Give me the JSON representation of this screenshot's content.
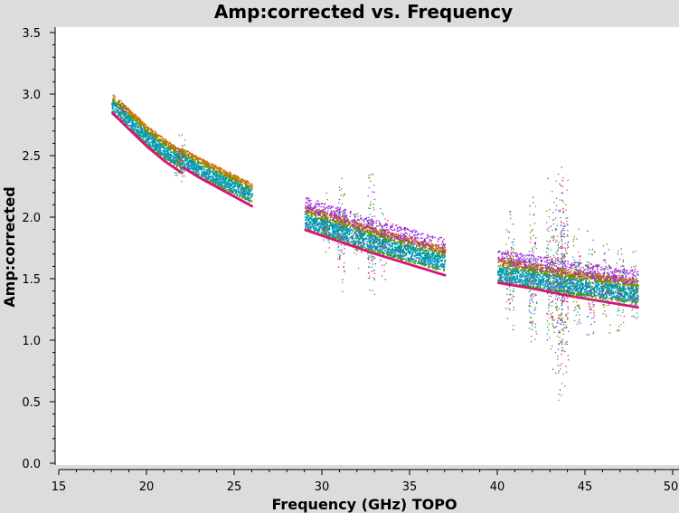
{
  "chart_data": {
    "type": "scatter",
    "title": "Amp:corrected vs. Frequency",
    "xlabel": "Frequency (GHz) TOPO",
    "ylabel": "Amp:corrected",
    "xlim": [
      15,
      50
    ],
    "ylim": [
      0.0,
      3.5
    ],
    "xticks": [
      "15",
      "20",
      "25",
      "30",
      "35",
      "40",
      "45",
      "50"
    ],
    "yticks": [
      "0.0",
      "0.5",
      "1.0",
      "1.5",
      "2.0",
      "2.5",
      "3.0",
      "3.5"
    ],
    "grid": false,
    "legend": "none",
    "band_colors": [
      "#0099aa",
      "#1a8fd0",
      "#cc6f00",
      "#2aa02a",
      "#9922dd",
      "#e0107a",
      "#6f8f00"
    ],
    "series": [
      {
        "x": [
          18.0,
          19.0,
          20.0,
          21.0,
          22.0
        ],
        "y": [
          2.93,
          2.8,
          2.67,
          2.56,
          2.47
        ]
      },
      {
        "x": [
          22.0,
          23.0,
          24.0,
          25.0,
          26.0
        ],
        "y": [
          2.49,
          2.41,
          2.34,
          2.27,
          2.2
        ]
      },
      {
        "x": [
          29.0,
          31.0,
          33.0,
          35.0,
          37.0
        ],
        "y": [
          2.0,
          1.91,
          1.82,
          1.74,
          1.66
        ]
      },
      {
        "x": [
          40.0,
          42.0,
          44.0,
          46.0,
          48.0
        ],
        "y": [
          1.57,
          1.53,
          1.48,
          1.44,
          1.4
        ]
      }
    ]
  }
}
